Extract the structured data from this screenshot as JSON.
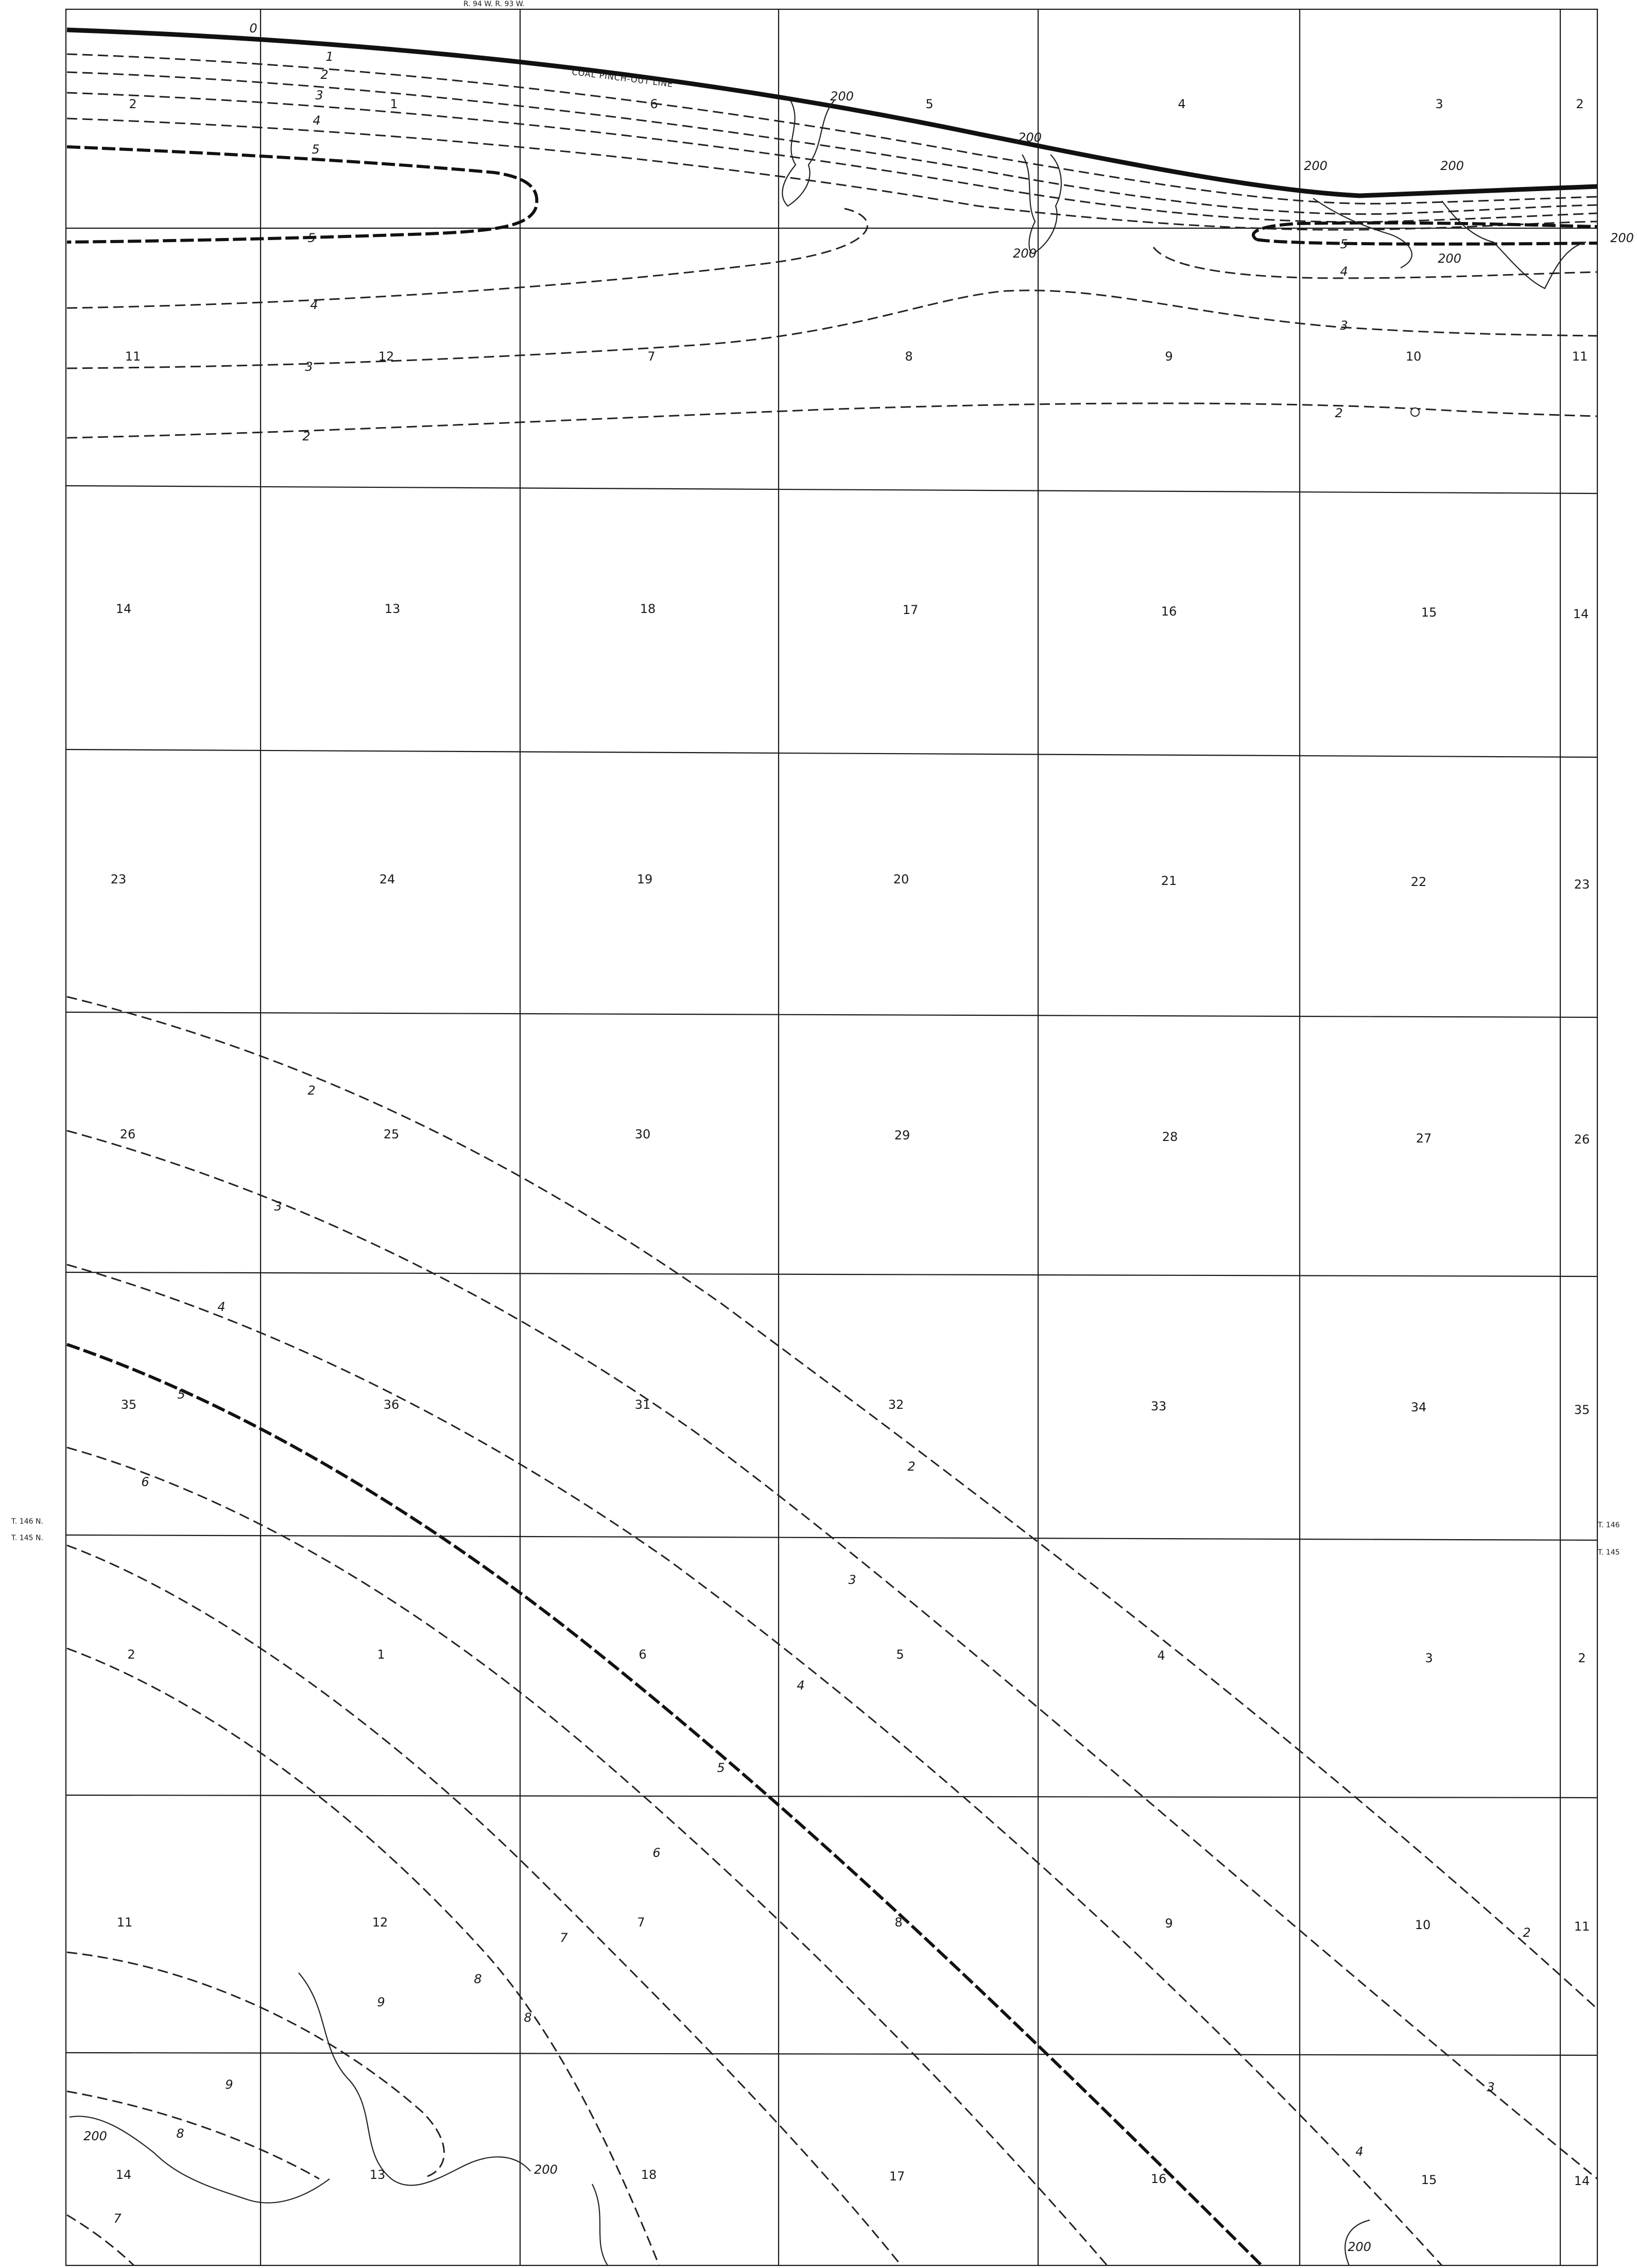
{
  "map": {
    "header_text": "R. 94 W.    R. 93 W.",
    "township_labels": {
      "left_upper": "T. 146 N.",
      "left_lower": "T. 145 N.",
      "right_upper": "T. 146",
      "right_lower": "T. 145"
    },
    "pinch_out_label": "COAL PINCH-OUT LINE",
    "pinch_out_zero": "0",
    "colors": {
      "ink": "#1a1a1a",
      "background": "#ffffff"
    }
  },
  "sections": [
    [
      "2",
      "1",
      "6",
      "5",
      "4",
      "3",
      "2"
    ],
    [
      "11",
      "12",
      "7",
      "8",
      "9",
      "10",
      "11"
    ],
    [
      "14",
      "13",
      "18",
      "17",
      "16",
      "15",
      "14"
    ],
    [
      "23",
      "24",
      "19",
      "20",
      "21",
      "22",
      "23"
    ],
    [
      "26",
      "25",
      "30",
      "29",
      "28",
      "27",
      "26"
    ],
    [
      "35",
      "36",
      "31",
      "32",
      "33",
      "34",
      "35"
    ],
    [
      "2",
      "1",
      "6",
      "5",
      "4",
      "3",
      "2"
    ],
    [
      "11",
      "12",
      "7",
      "8",
      "9",
      "10",
      "11"
    ],
    [
      "14",
      "13",
      "18",
      "17",
      "16",
      "15",
      "14"
    ]
  ],
  "contour_labels": {
    "c1": "1",
    "c2": "2",
    "c3": "3",
    "c4": "4",
    "c5": "5",
    "c6": "6",
    "c7": "7",
    "c8": "8",
    "c9": "9",
    "c200": "200"
  }
}
